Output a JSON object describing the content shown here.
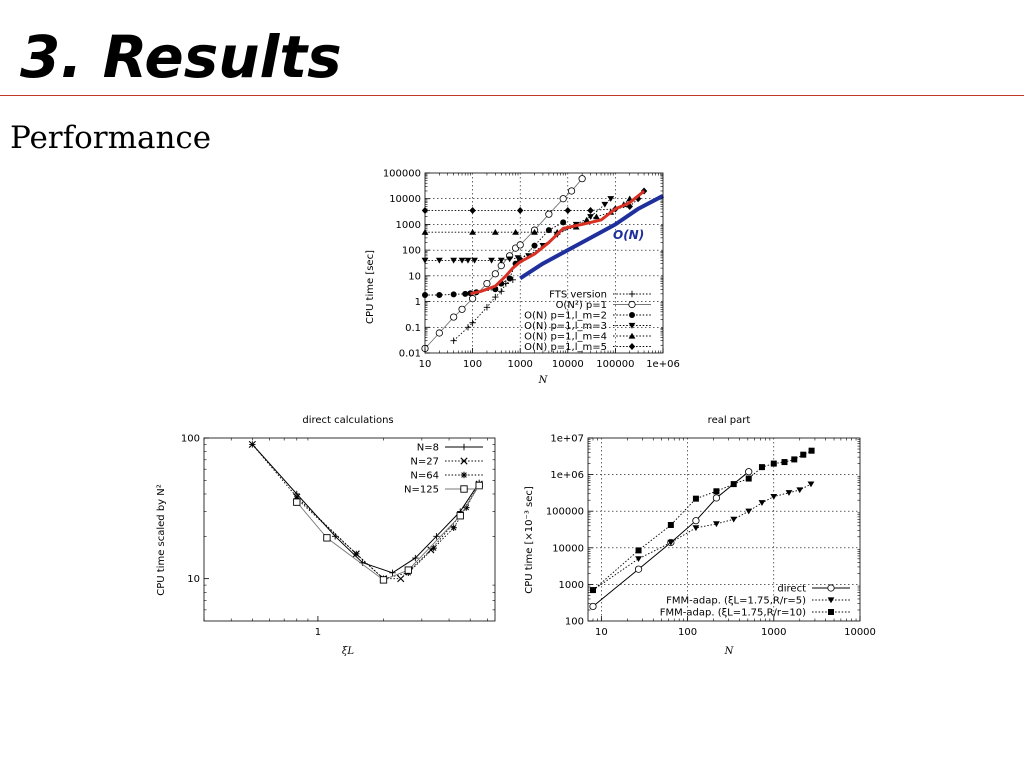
{
  "slide": {
    "title": "3. Results",
    "subtitle": "Performance"
  },
  "chart_data": [
    {
      "type": "line",
      "title": "",
      "xlabel": "N",
      "ylabel": "CPU time [sec]",
      "xscale": "log",
      "yscale": "log",
      "xlim": [
        10,
        1000000
      ],
      "ylim": [
        0.01,
        100000
      ],
      "xticks": [
        10,
        100,
        1000,
        10000,
        100000,
        1000000
      ],
      "xtick_labels": [
        "10",
        "100",
        "1000",
        "10000",
        "100000",
        "1e+06"
      ],
      "yticks": [
        0.01,
        0.1,
        1,
        10,
        100,
        1000,
        10000,
        100000
      ],
      "ytick_labels": [
        "0.01",
        "0.1",
        "1",
        "10",
        "100",
        "1000",
        "10000",
        "100000"
      ],
      "grid": true,
      "legend": "bottom-right",
      "annotation": "O(N)",
      "series": [
        {
          "name": "FTS version",
          "marker": "plus",
          "line": "dotted",
          "points": [
            [
              40,
              0.03
            ],
            [
              80,
              0.1
            ],
            [
              100,
              0.15
            ],
            [
              200,
              0.6
            ],
            [
              300,
              1.5
            ],
            [
              400,
              2.5
            ],
            [
              500,
              5
            ],
            [
              700,
              7
            ]
          ]
        },
        {
          "name": "O(N²) p=1",
          "marker": "circle-open",
          "line": "solid-gray",
          "points": [
            [
              10,
              0.015
            ],
            [
              20,
              0.06
            ],
            [
              40,
              0.25
            ],
            [
              60,
              0.5
            ],
            [
              100,
              1.3
            ],
            [
              200,
              5
            ],
            [
              300,
              12
            ],
            [
              400,
              25
            ],
            [
              600,
              60
            ],
            [
              800,
              120
            ],
            [
              1000,
              160
            ],
            [
              2000,
              600
            ],
            [
              4000,
              2500
            ],
            [
              8000,
              10000
            ],
            [
              12000,
              20000
            ],
            [
              20000,
              60000
            ]
          ]
        },
        {
          "name": "O(N) p=1,l_m=2",
          "marker": "circle-filled",
          "line": "dotted",
          "points": [
            [
              10,
              1.8
            ],
            [
              20,
              1.8
            ],
            [
              40,
              1.9
            ],
            [
              70,
              2
            ],
            [
              90,
              2.1
            ],
            [
              120,
              2.3
            ],
            [
              300,
              3
            ],
            [
              400,
              5
            ],
            [
              600,
              8
            ],
            [
              800,
              30
            ],
            [
              1000,
              40
            ],
            [
              2000,
              150
            ],
            [
              4000,
              600
            ],
            [
              8000,
              1200
            ]
          ]
        },
        {
          "name": "O(N) p=1,l_m=3",
          "marker": "triangle-down",
          "line": "dotted",
          "points": [
            [
              10,
              40
            ],
            [
              20,
              40
            ],
            [
              40,
              40
            ],
            [
              60,
              40
            ],
            [
              80,
              40
            ],
            [
              110,
              40
            ],
            [
              250,
              40
            ],
            [
              400,
              40
            ],
            [
              600,
              45
            ],
            [
              900,
              50
            ],
            [
              1500,
              60
            ],
            [
              3000,
              150
            ],
            [
              6000,
              400
            ],
            [
              15000,
              1000
            ],
            [
              30000,
              2000
            ],
            [
              60000,
              6000
            ],
            [
              80000,
              10000
            ]
          ]
        },
        {
          "name": "O(N) p=1,l_m=4",
          "marker": "triangle-up",
          "line": "dotted",
          "points": [
            [
              10,
              500
            ],
            [
              100,
              500
            ],
            [
              300,
              500
            ],
            [
              800,
              500
            ],
            [
              2000,
              500
            ],
            [
              6000,
              500
            ],
            [
              15000,
              800
            ],
            [
              25000,
              1500
            ],
            [
              40000,
              2000
            ],
            [
              80000,
              3000
            ],
            [
              150000,
              6000
            ],
            [
              200000,
              10000
            ]
          ]
        },
        {
          "name": "O(N) p=1,l_m=5",
          "marker": "diamond",
          "line": "dotted",
          "points": [
            [
              10,
              3500
            ],
            [
              100,
              3500
            ],
            [
              1000,
              3500
            ],
            [
              10000,
              3500
            ],
            [
              30000,
              3500
            ],
            [
              100000,
              4000
            ],
            [
              200000,
              5000
            ],
            [
              300000,
              10000
            ],
            [
              400000,
              20000
            ]
          ]
        },
        {
          "name": "",
          "marker": "none",
          "line": "thick-red",
          "points": [
            [
              90,
              2
            ],
            [
              150,
              2.5
            ],
            [
              300,
              4
            ],
            [
              500,
              10
            ],
            [
              700,
              20
            ],
            [
              1000,
              35
            ],
            [
              2000,
              70
            ],
            [
              4000,
              200
            ],
            [
              8000,
              700
            ],
            [
              20000,
              1000
            ],
            [
              50000,
              1500
            ],
            [
              100000,
              4000
            ],
            [
              200000,
              7000
            ],
            [
              400000,
              20000
            ]
          ]
        },
        {
          "name": "",
          "marker": "none",
          "line": "thick-blue",
          "points": [
            [
              1000,
              8
            ],
            [
              3000,
              30
            ],
            [
              10000,
              100
            ],
            [
              30000,
              300
            ],
            [
              100000,
              1000
            ],
            [
              300000,
              4000
            ],
            [
              1000000,
              13000
            ]
          ]
        }
      ]
    },
    {
      "type": "line",
      "title": "direct calculations",
      "xlabel": "ξL",
      "ylabel": "CPU time scaled by N²",
      "xscale": "log",
      "yscale": "log",
      "xlim": [
        0.3,
        6.5
      ],
      "ylim": [
        5,
        100
      ],
      "xticks": [
        1
      ],
      "xtick_labels": [
        "1"
      ],
      "yticks": [
        10,
        100
      ],
      "ytick_labels": [
        "10",
        "100"
      ],
      "grid": false,
      "legend": "top-right",
      "series": [
        {
          "name": "N=8",
          "marker": "plus",
          "line": "solid",
          "points": [
            [
              0.5,
              90
            ],
            [
              0.8,
              40
            ],
            [
              1.2,
              20
            ],
            [
              1.6,
              13
            ],
            [
              2.2,
              11
            ],
            [
              2.8,
              14
            ],
            [
              3.5,
              20
            ],
            [
              4.5,
              30
            ],
            [
              5.5,
              48
            ]
          ]
        },
        {
          "name": "N=27",
          "marker": "x",
          "line": "dotted",
          "points": [
            [
              0.5,
              90
            ],
            [
              0.8,
              38
            ],
            [
              1.5,
              15
            ],
            [
              2.0,
              10
            ],
            [
              2.4,
              10
            ],
            [
              3.3,
              16
            ],
            [
              4.5,
              28
            ],
            [
              5.5,
              47
            ]
          ]
        },
        {
          "name": "N=64",
          "marker": "star",
          "line": "dotted",
          "points": [
            [
              0.8,
              37
            ],
            [
              1.5,
              15
            ],
            [
              2.0,
              10
            ],
            [
              2.6,
              11
            ],
            [
              3.4,
              16.5
            ],
            [
              4.2,
              23
            ],
            [
              4.8,
              32
            ],
            [
              5.5,
              47
            ]
          ]
        },
        {
          "name": "N=125",
          "marker": "square-open",
          "line": "solid-gray",
          "points": [
            [
              0.8,
              35
            ],
            [
              1.1,
              19.5
            ],
            [
              2.0,
              9.8
            ],
            [
              2.6,
              11.5
            ],
            [
              4.5,
              28
            ],
            [
              5.5,
              46
            ]
          ]
        }
      ]
    },
    {
      "type": "line",
      "title": "real part",
      "xlabel": "N",
      "ylabel": "CPU time [×10⁻³ sec]",
      "xscale": "log",
      "yscale": "log",
      "xlim": [
        7,
        10000
      ],
      "ylim": [
        100,
        10000000
      ],
      "xticks": [
        10,
        100,
        1000,
        10000
      ],
      "xtick_labels": [
        "10",
        "100",
        "1000",
        "10000"
      ],
      "yticks": [
        100,
        1000,
        10000,
        100000,
        1000000,
        10000000
      ],
      "ytick_labels": [
        "100",
        "1000",
        "10000",
        "100000",
        "1e+06",
        "1e+07"
      ],
      "grid": true,
      "legend": "bottom-right",
      "series": [
        {
          "name": "direct",
          "marker": "circle-open",
          "line": "solid",
          "points": [
            [
              8,
              250
            ],
            [
              27,
              2600
            ],
            [
              64,
              14000
            ],
            [
              125,
              55000
            ],
            [
              216,
              230000
            ],
            [
              512,
              1200000
            ]
          ]
        },
        {
          "name": "FMM-adap. (ξL=1.75,R/r=5)",
          "marker": "triangle-down",
          "line": "dotted",
          "points": [
            [
              8,
              700
            ],
            [
              27,
              5000
            ],
            [
              64,
              14000
            ],
            [
              125,
              35000
            ],
            [
              216,
              45000
            ],
            [
              343,
              60000
            ],
            [
              512,
              100000
            ],
            [
              729,
              170000
            ],
            [
              1000,
              250000
            ],
            [
              1500,
              320000
            ],
            [
              2000,
              380000
            ],
            [
              2700,
              550000
            ]
          ]
        },
        {
          "name": "FMM-adap. (ξL=1.75,R/r=10)",
          "marker": "square-filled",
          "line": "dotted",
          "points": [
            [
              8,
              700
            ],
            [
              27,
              8500
            ],
            [
              64,
              42000
            ],
            [
              125,
              220000
            ],
            [
              216,
              350000
            ],
            [
              343,
              550000
            ],
            [
              512,
              780000
            ],
            [
              729,
              1600000
            ],
            [
              1000,
              2000000
            ],
            [
              1331,
              2200000
            ],
            [
              1728,
              2600000
            ],
            [
              2197,
              3500000
            ],
            [
              2744,
              4500000
            ]
          ]
        }
      ]
    }
  ]
}
